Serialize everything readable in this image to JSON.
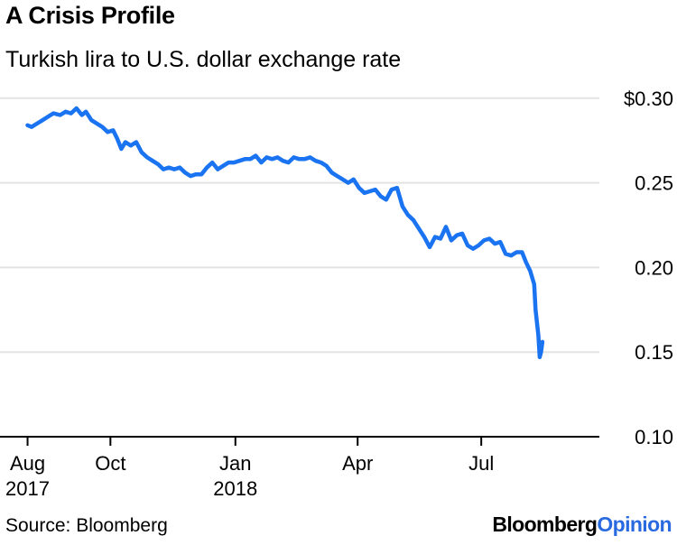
{
  "chart_data": {
    "type": "line",
    "title": "A Crisis Profile",
    "subtitle": "Turkish lira to U.S. dollar exchange rate",
    "y_ticks": [
      {
        "value": 0.3,
        "label": "$0.30"
      },
      {
        "value": 0.25,
        "label": "0.25"
      },
      {
        "value": 0.2,
        "label": "0.20"
      },
      {
        "value": 0.15,
        "label": "0.15"
      },
      {
        "value": 0.1,
        "label": "0.10"
      }
    ],
    "x_ticks": [
      {
        "date": "2017-08-01",
        "label": "Aug",
        "label2": "2017"
      },
      {
        "date": "2017-10-01",
        "label": "Oct",
        "label2": ""
      },
      {
        "date": "2018-01-01",
        "label": "Jan",
        "label2": "2018"
      },
      {
        "date": "2018-04-01",
        "label": "Apr",
        "label2": ""
      },
      {
        "date": "2018-07-01",
        "label": "Jul",
        "label2": ""
      }
    ],
    "xlim": [
      "2017-07-25",
      "2018-09-10"
    ],
    "ylim": [
      0.1,
      0.31
    ],
    "grid": true,
    "legend": "none",
    "line_color": "#1a73f0",
    "series": [
      {
        "points": [
          [
            "2017-08-01",
            0.284
          ],
          [
            "2017-08-04",
            0.283
          ],
          [
            "2017-08-08",
            0.285
          ],
          [
            "2017-08-12",
            0.287
          ],
          [
            "2017-08-16",
            0.289
          ],
          [
            "2017-08-20",
            0.291
          ],
          [
            "2017-08-25",
            0.29
          ],
          [
            "2017-08-29",
            0.292
          ],
          [
            "2017-09-02",
            0.291
          ],
          [
            "2017-09-06",
            0.294
          ],
          [
            "2017-09-10",
            0.29
          ],
          [
            "2017-09-13",
            0.292
          ],
          [
            "2017-09-17",
            0.287
          ],
          [
            "2017-09-21",
            0.285
          ],
          [
            "2017-09-25",
            0.283
          ],
          [
            "2017-09-29",
            0.28
          ],
          [
            "2017-10-03",
            0.281
          ],
          [
            "2017-10-06",
            0.276
          ],
          [
            "2017-10-09",
            0.27
          ],
          [
            "2017-10-12",
            0.274
          ],
          [
            "2017-10-16",
            0.272
          ],
          [
            "2017-10-20",
            0.274
          ],
          [
            "2017-10-24",
            0.268
          ],
          [
            "2017-10-28",
            0.265
          ],
          [
            "2017-11-01",
            0.263
          ],
          [
            "2017-11-05",
            0.261
          ],
          [
            "2017-11-09",
            0.258
          ],
          [
            "2017-11-13",
            0.259
          ],
          [
            "2017-11-17",
            0.258
          ],
          [
            "2017-11-21",
            0.259
          ],
          [
            "2017-11-25",
            0.256
          ],
          [
            "2017-11-29",
            0.254
          ],
          [
            "2017-12-03",
            0.255
          ],
          [
            "2017-12-07",
            0.255
          ],
          [
            "2017-12-11",
            0.259
          ],
          [
            "2017-12-15",
            0.262
          ],
          [
            "2017-12-19",
            0.258
          ],
          [
            "2017-12-23",
            0.26
          ],
          [
            "2017-12-27",
            0.262
          ],
          [
            "2017-12-31",
            0.262
          ],
          [
            "2018-01-04",
            0.263
          ],
          [
            "2018-01-08",
            0.264
          ],
          [
            "2018-01-12",
            0.264
          ],
          [
            "2018-01-16",
            0.266
          ],
          [
            "2018-01-20",
            0.262
          ],
          [
            "2018-01-24",
            0.265
          ],
          [
            "2018-01-28",
            0.264
          ],
          [
            "2018-02-01",
            0.265
          ],
          [
            "2018-02-05",
            0.263
          ],
          [
            "2018-02-09",
            0.262
          ],
          [
            "2018-02-13",
            0.265
          ],
          [
            "2018-02-17",
            0.264
          ],
          [
            "2018-02-21",
            0.264
          ],
          [
            "2018-02-25",
            0.265
          ],
          [
            "2018-03-01",
            0.263
          ],
          [
            "2018-03-05",
            0.262
          ],
          [
            "2018-03-09",
            0.26
          ],
          [
            "2018-03-13",
            0.256
          ],
          [
            "2018-03-17",
            0.254
          ],
          [
            "2018-03-21",
            0.252
          ],
          [
            "2018-03-25",
            0.25
          ],
          [
            "2018-03-29",
            0.252
          ],
          [
            "2018-04-02",
            0.247
          ],
          [
            "2018-04-06",
            0.244
          ],
          [
            "2018-04-10",
            0.245
          ],
          [
            "2018-04-14",
            0.246
          ],
          [
            "2018-04-18",
            0.242
          ],
          [
            "2018-04-22",
            0.24
          ],
          [
            "2018-04-26",
            0.246
          ],
          [
            "2018-04-30",
            0.247
          ],
          [
            "2018-05-04",
            0.236
          ],
          [
            "2018-05-08",
            0.231
          ],
          [
            "2018-05-12",
            0.228
          ],
          [
            "2018-05-16",
            0.223
          ],
          [
            "2018-05-20",
            0.218
          ],
          [
            "2018-05-24",
            0.212
          ],
          [
            "2018-05-28",
            0.218
          ],
          [
            "2018-06-01",
            0.217
          ],
          [
            "2018-06-05",
            0.224
          ],
          [
            "2018-06-09",
            0.216
          ],
          [
            "2018-06-13",
            0.219
          ],
          [
            "2018-06-17",
            0.22
          ],
          [
            "2018-06-21",
            0.213
          ],
          [
            "2018-06-25",
            0.211
          ],
          [
            "2018-06-29",
            0.213
          ],
          [
            "2018-07-03",
            0.216
          ],
          [
            "2018-07-07",
            0.217
          ],
          [
            "2018-07-11",
            0.214
          ],
          [
            "2018-07-15",
            0.215
          ],
          [
            "2018-07-19",
            0.208
          ],
          [
            "2018-07-23",
            0.207
          ],
          [
            "2018-07-27",
            0.209
          ],
          [
            "2018-07-31",
            0.209
          ],
          [
            "2018-08-03",
            0.203
          ],
          [
            "2018-08-06",
            0.198
          ],
          [
            "2018-08-09",
            0.19
          ],
          [
            "2018-08-10",
            0.175
          ],
          [
            "2018-08-12",
            0.16
          ],
          [
            "2018-08-13",
            0.147
          ],
          [
            "2018-08-14",
            0.15
          ],
          [
            "2018-08-15",
            0.156
          ]
        ]
      }
    ]
  },
  "footer": {
    "source": "Source: Bloomberg",
    "brand_part1": "Bloomberg",
    "brand_part2": "Opinion"
  }
}
